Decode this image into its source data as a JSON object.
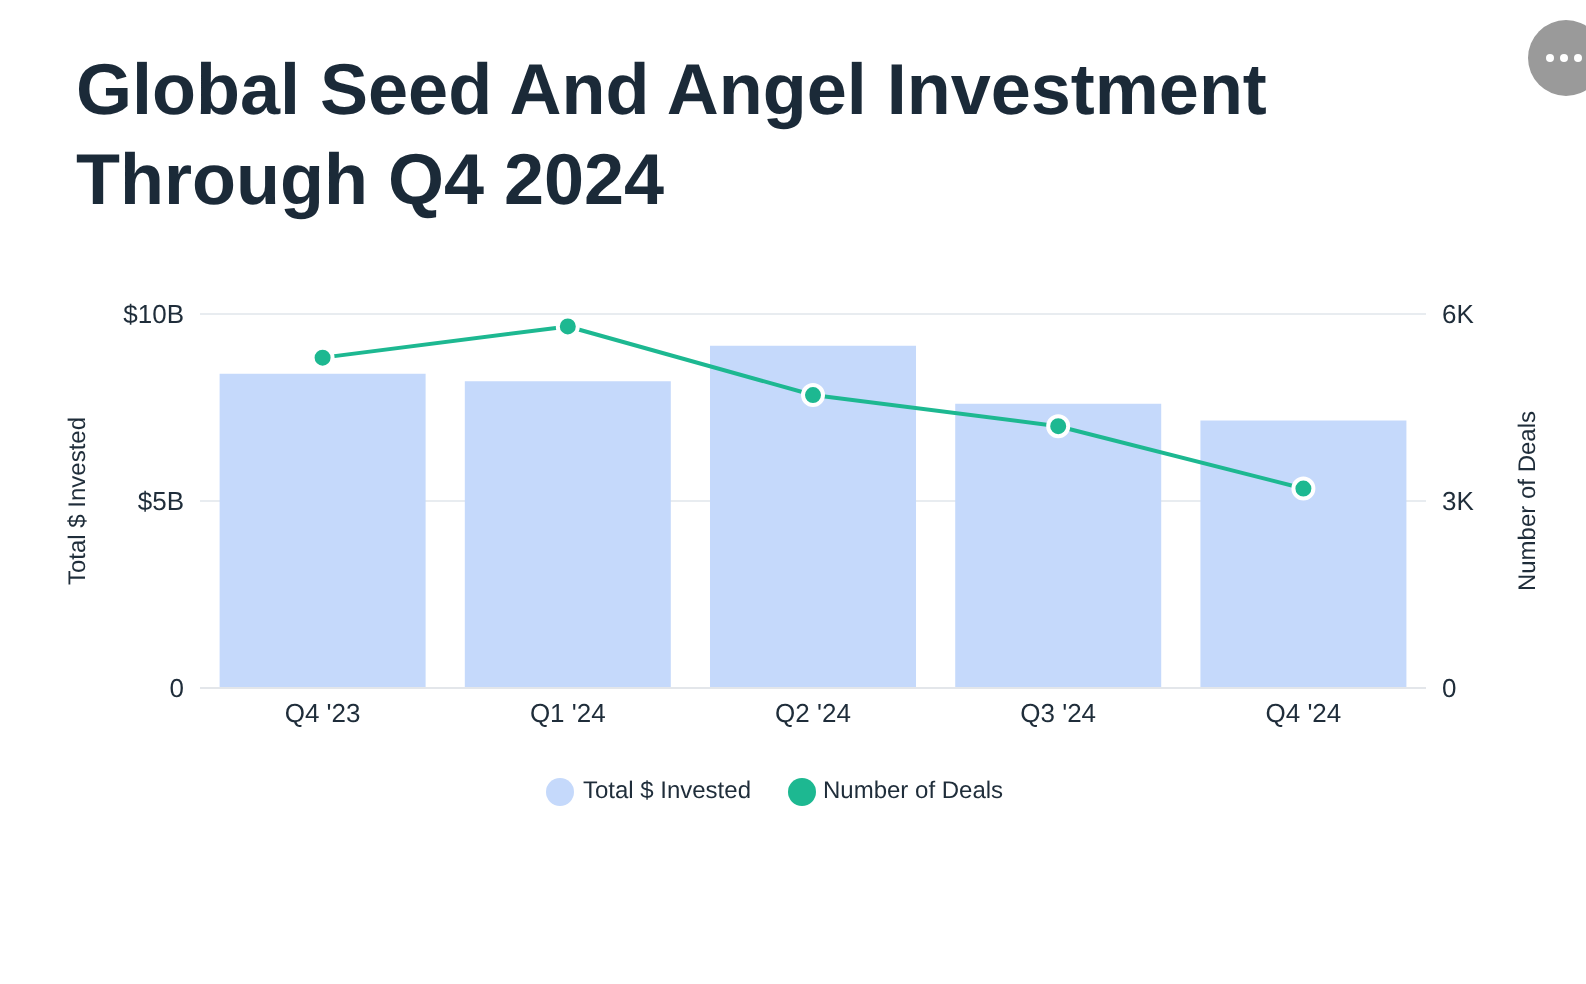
{
  "chart_data": {
    "type": "bar",
    "title": "Global Seed And Angel Investment Through Q4 2024",
    "categories": [
      "Q4 '23",
      "Q1 '24",
      "Q2 '24",
      "Q3 '24",
      "Q4 '24"
    ],
    "series": [
      {
        "name": "Total $ Invested",
        "color": "#c5d9fb",
        "values": [
          8.4,
          8.2,
          9.15,
          7.6,
          7.15
        ]
      },
      {
        "name": "Number of Deals",
        "type": "line",
        "axis": "y2",
        "color": "#1db891",
        "values": [
          5.3,
          5.8,
          4.7,
          4.2,
          3.2
        ]
      }
    ],
    "ylabel": "Total $ Invested",
    "y2label": "Number of Deals",
    "ylim": [
      0,
      10
    ],
    "yticks": [
      0,
      {
        "value": 5,
        "label": "$5B"
      },
      {
        "value": 10,
        "label": "$10B"
      }
    ],
    "y2lim": [
      0,
      6
    ],
    "y2ticks": [
      0,
      {
        "value": 3,
        "label": "3K"
      },
      {
        "value": 6,
        "label": "6K"
      }
    ],
    "grid": "y",
    "legend": "bottom",
    "marker": "circle",
    "line_style": "solid"
  }
}
